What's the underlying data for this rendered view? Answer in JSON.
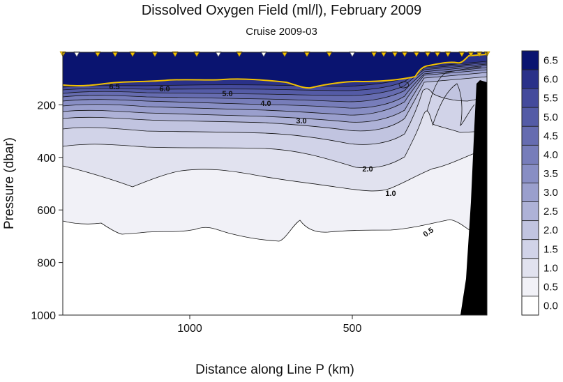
{
  "chart_data": {
    "type": "heatmap",
    "title": "Dissolved Oxygen Field  (ml/l),  February 2009",
    "subtitle": "Cruise 2009-03",
    "xlabel": "Distance along Line P  (km)",
    "ylabel": "Pressure  (dbar)",
    "x_ticks": [
      "1000",
      "500"
    ],
    "y_ticks": [
      200,
      400,
      600,
      800,
      1000
    ],
    "ylim": [
      0,
      1000
    ],
    "colorbar": {
      "ticks": [
        "6.5",
        "6.0",
        "5.5",
        "5.0",
        "4.5",
        "4.0",
        "3.5",
        "3.0",
        "2.5",
        "2.0",
        "1.5",
        "1.0",
        "0.5",
        "0.0"
      ],
      "levels": [
        0.0,
        0.5,
        1.0,
        1.5,
        2.0,
        2.5,
        3.0,
        3.5,
        4.0,
        4.5,
        5.0,
        5.5,
        6.0,
        6.5
      ],
      "colors": [
        "#ffffff",
        "#f1f1f7",
        "#e1e2ef",
        "#d1d3e8",
        "#c1c4e0",
        "#aeb2d7",
        "#9a9fcd",
        "#888ec4",
        "#777dba",
        "#666cb0",
        "#545ba6",
        "#444a9c",
        "#2a3189",
        "#0a1470"
      ]
    },
    "contour_labels": [
      "6.5",
      "6.0",
      "5.0",
      "4.0",
      "3.0",
      "2.0",
      "1.0",
      "0.5"
    ],
    "station_marker_color": "#f2c100",
    "contour_label_color": "#f2c100",
    "land_color": "#000000"
  }
}
